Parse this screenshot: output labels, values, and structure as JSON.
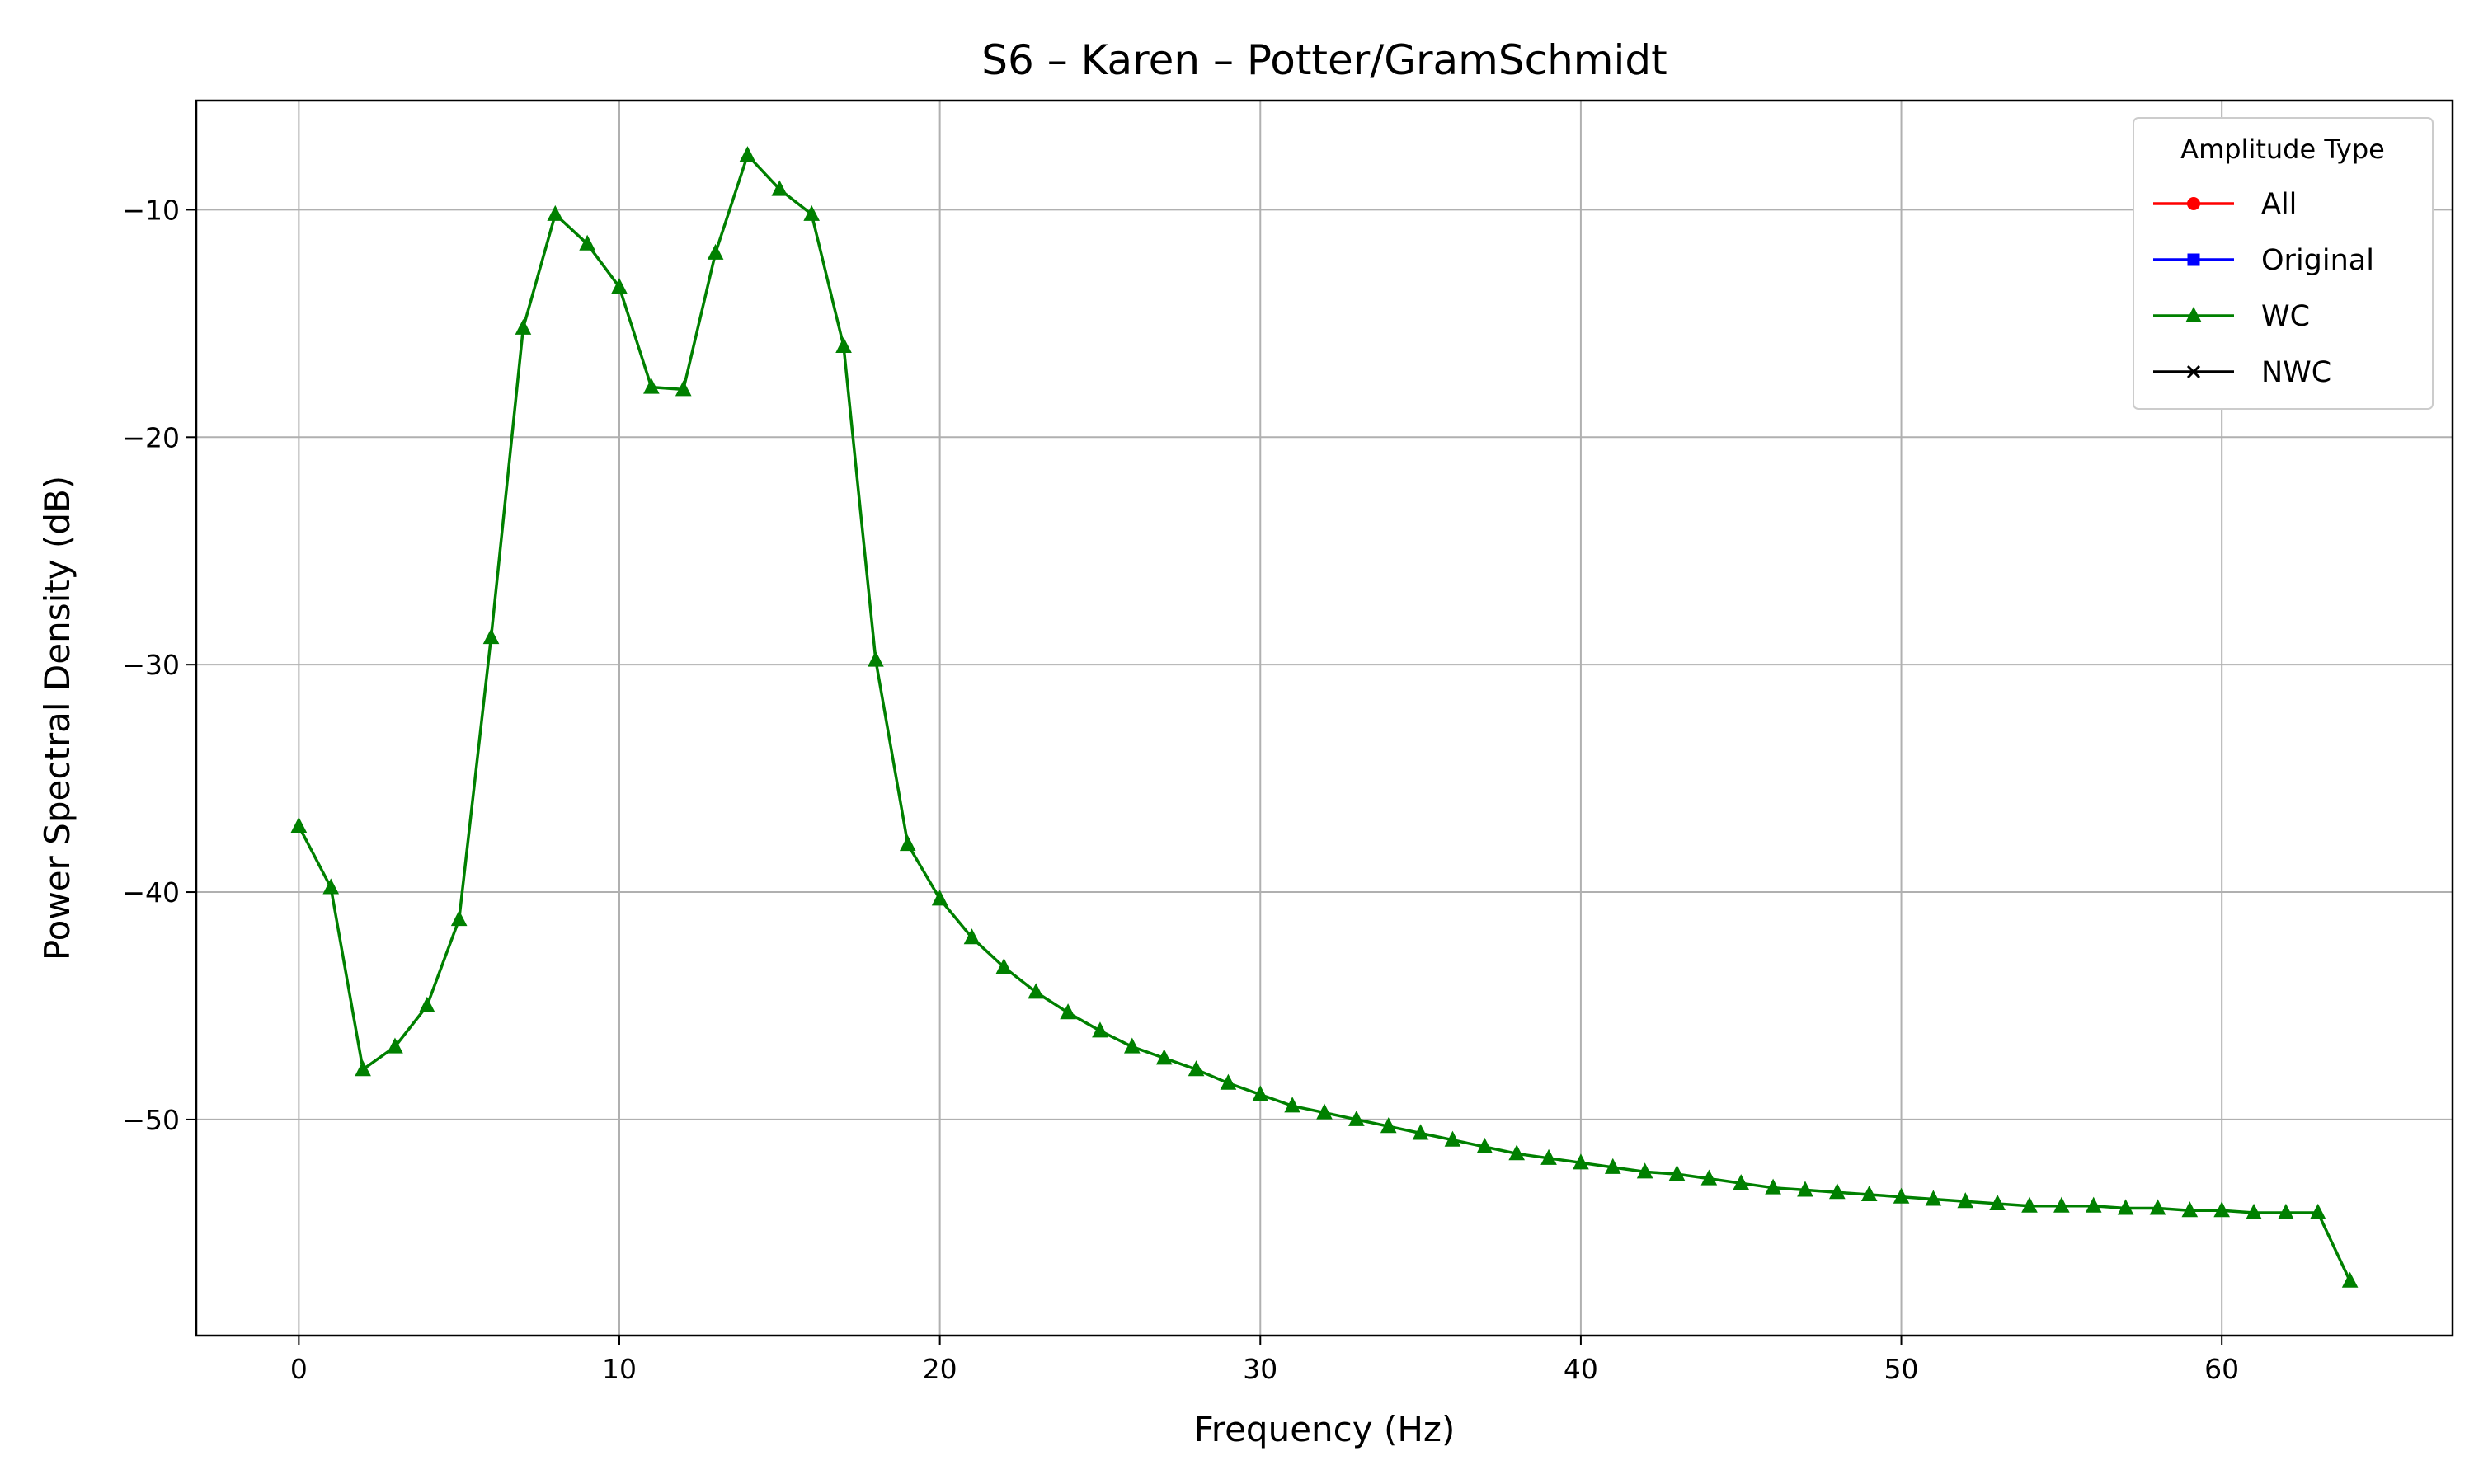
{
  "chart_data": {
    "type": "line",
    "title": "S6 – Karen – Potter/GramSchmidt",
    "xlabel": "Frequency (Hz)",
    "ylabel": "Power Spectral Density (dB)",
    "xlim": [
      -3.2,
      67.2
    ],
    "ylim": [
      -59.5,
      -5.2
    ],
    "x_ticks": [
      0,
      10,
      20,
      30,
      40,
      50,
      60
    ],
    "y_ticks": [
      -10,
      -20,
      -30,
      -40,
      -50
    ],
    "x_tick_labels": [
      "0",
      "10",
      "20",
      "30",
      "40",
      "50",
      "60"
    ],
    "y_tick_labels": [
      "−10",
      "−20",
      "−30",
      "−40",
      "−50"
    ],
    "grid": true,
    "legend": {
      "title": "Amplitude Type",
      "placement": "top-right",
      "entries": [
        {
          "name": "All",
          "color": "#ff0000",
          "marker": "circle"
        },
        {
          "name": "Original",
          "color": "#0000ff",
          "marker": "square"
        },
        {
          "name": "WC",
          "color": "#008000",
          "marker": "triangle"
        },
        {
          "name": "NWC",
          "color": "#000000",
          "marker": "x"
        }
      ]
    },
    "series": [
      {
        "name": "WC",
        "color": "#008000",
        "marker": "triangle",
        "x": [
          0,
          1,
          2,
          3,
          4,
          5,
          6,
          7,
          8,
          9,
          10,
          11,
          12,
          13,
          14,
          15,
          16,
          17,
          18,
          19,
          20,
          21,
          22,
          23,
          24,
          25,
          26,
          27,
          28,
          29,
          30,
          31,
          32,
          33,
          34,
          35,
          36,
          37,
          38,
          39,
          40,
          41,
          42,
          43,
          44,
          45,
          46,
          47,
          48,
          49,
          50,
          51,
          52,
          53,
          54,
          55,
          56,
          57,
          58,
          59,
          60,
          61,
          62,
          63,
          64
        ],
        "values": [
          -37.1,
          -39.8,
          -47.8,
          -46.8,
          -45.0,
          -41.2,
          -28.8,
          -15.2,
          -10.2,
          -11.5,
          -13.4,
          -17.8,
          -17.9,
          -11.9,
          -7.6,
          -9.1,
          -10.2,
          -16.0,
          -29.8,
          -37.9,
          -40.3,
          -42.0,
          -43.3,
          -44.4,
          -45.3,
          -46.1,
          -46.8,
          -47.3,
          -47.8,
          -48.4,
          -48.9,
          -49.4,
          -49.7,
          -50.0,
          -50.3,
          -50.6,
          -50.9,
          -51.2,
          -51.5,
          -51.7,
          -51.9,
          -52.1,
          -52.3,
          -52.4,
          -52.6,
          -52.8,
          -53.0,
          -53.1,
          -53.2,
          -53.3,
          -53.4,
          -53.5,
          -53.6,
          -53.7,
          -53.8,
          -53.8,
          -53.8,
          -53.9,
          -53.9,
          -54.0,
          -54.0,
          -54.1,
          -54.1,
          -54.1,
          -57.1
        ]
      }
    ]
  }
}
